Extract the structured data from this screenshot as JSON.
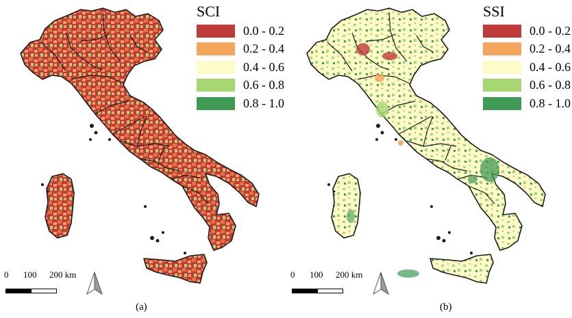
{
  "panels": [
    {
      "legend_title": "SCI",
      "legend": [
        {
          "range": "0.0 - 0.2",
          "color": "#c0393b"
        },
        {
          "range": "0.2 - 0.4",
          "color": "#f5a55e"
        },
        {
          "range": "0.4 - 0.6",
          "color": "#fdfbc8"
        },
        {
          "range": "0.6 - 0.8",
          "color": "#a7d772"
        },
        {
          "range": "0.8 - 1.0",
          "color": "#3f9a55"
        }
      ],
      "scalebar": {
        "zero": "0",
        "mid": "100",
        "max": "200 km"
      },
      "caption": "(a)"
    },
    {
      "legend_title": "SSI",
      "legend": [
        {
          "range": "0.0 - 0.2",
          "color": "#c0393b"
        },
        {
          "range": "0.2 - 0.4",
          "color": "#f5a55e"
        },
        {
          "range": "0.4 - 0.6",
          "color": "#fdfbc8"
        },
        {
          "range": "0.6 - 0.8",
          "color": "#a7d772"
        },
        {
          "range": "0.8 - 1.0",
          "color": "#3f9a55"
        }
      ],
      "scalebar": {
        "zero": "0",
        "mid": "100",
        "max": "200 km"
      },
      "caption": "(b)"
    }
  ],
  "icons": {
    "north_arrow": "north-arrow-icon"
  }
}
